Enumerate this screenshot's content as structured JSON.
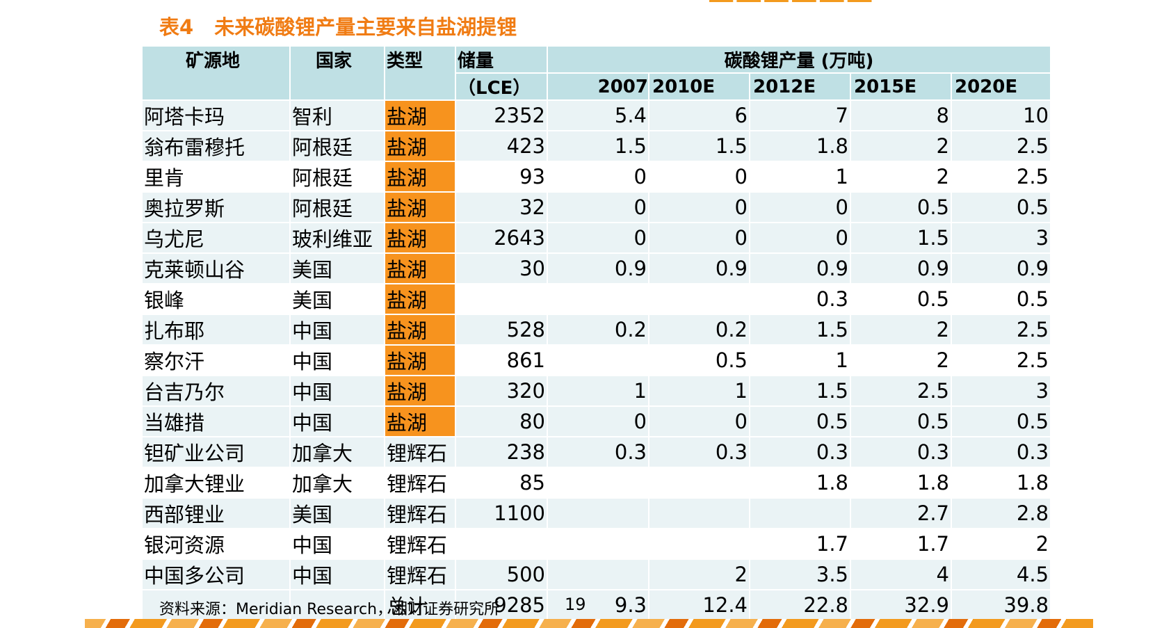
{
  "title": {
    "prefix": "表4",
    "text": "未来碳酸锂产量主要来自盐湖提锂"
  },
  "header": {
    "mine": "矿源地",
    "country": "国家",
    "type": "类型",
    "reserve_line1": "储量",
    "reserve_line2": "（LCE）",
    "production_group": "碳酸锂产量 (万吨)",
    "years": [
      "2007",
      "2010E",
      "2012E",
      "2015E",
      "2020E"
    ]
  },
  "rows": [
    {
      "mine": "阿塔卡玛",
      "country": "智利",
      "type": "盐湖",
      "reserve": "2352",
      "v": [
        "5.4",
        "6",
        "7",
        "8",
        "10"
      ]
    },
    {
      "mine": "翁布雷穆托",
      "country": "阿根廷",
      "type": "盐湖",
      "reserve": "423",
      "v": [
        "1.5",
        "1.5",
        "1.8",
        "2",
        "2.5"
      ]
    },
    {
      "mine": "里肯",
      "country": "阿根廷",
      "type": "盐湖",
      "reserve": "93",
      "v": [
        "0",
        "0",
        "1",
        "2",
        "2.5"
      ]
    },
    {
      "mine": "奥拉罗斯",
      "country": "阿根廷",
      "type": "盐湖",
      "reserve": "32",
      "v": [
        "0",
        "0",
        "0",
        "0.5",
        "0.5"
      ]
    },
    {
      "mine": "乌尤尼",
      "country": "玻利维亚",
      "type": "盐湖",
      "reserve": "2643",
      "v": [
        "0",
        "0",
        "0",
        "1.5",
        "3"
      ]
    },
    {
      "mine": "克莱顿山谷",
      "country": "美国",
      "type": "盐湖",
      "reserve": "30",
      "v": [
        "0.9",
        "0.9",
        "0.9",
        "0.9",
        "0.9"
      ]
    },
    {
      "mine": "银峰",
      "country": "美国",
      "type": "盐湖",
      "reserve": "",
      "v": [
        "",
        "",
        "0.3",
        "0.5",
        "0.5"
      ]
    },
    {
      "mine": "扎布耶",
      "country": "中国",
      "type": "盐湖",
      "reserve": "528",
      "v": [
        "0.2",
        "0.2",
        "1.5",
        "2",
        "2.5"
      ]
    },
    {
      "mine": "察尔汗",
      "country": "中国",
      "type": "盐湖",
      "reserve": "861",
      "v": [
        "",
        "0.5",
        "1",
        "2",
        "2.5"
      ]
    },
    {
      "mine": "台吉乃尔",
      "country": "中国",
      "type": "盐湖",
      "reserve": "320",
      "v": [
        "1",
        "1",
        "1.5",
        "2.5",
        "3"
      ]
    },
    {
      "mine": "当雄措",
      "country": "中国",
      "type": "盐湖",
      "reserve": "80",
      "v": [
        "0",
        "0",
        "0.5",
        "0.5",
        "0.5"
      ]
    },
    {
      "mine": "钽矿业公司",
      "country": "加拿大",
      "type": "锂辉石",
      "reserve": "238",
      "v": [
        "0.3",
        "0.3",
        "0.3",
        "0.3",
        "0.3"
      ]
    },
    {
      "mine": "加拿大锂业",
      "country": "加拿大",
      "type": "锂辉石",
      "reserve": "85",
      "v": [
        "",
        "",
        "1.8",
        "1.8",
        "1.8"
      ]
    },
    {
      "mine": "西部锂业",
      "country": "美国",
      "type": "锂辉石",
      "reserve": "1100",
      "v": [
        "",
        "",
        "",
        "2.7",
        "2.8"
      ]
    },
    {
      "mine": "银河资源",
      "country": "中国",
      "type": "锂辉石",
      "reserve": "",
      "v": [
        "",
        "",
        "1.7",
        "1.7",
        "2"
      ]
    },
    {
      "mine": "中国多公司",
      "country": "中国",
      "type": "锂辉石",
      "reserve": "500",
      "v": [
        "",
        "2",
        "3.5",
        "4",
        "4.5"
      ]
    },
    {
      "mine": "",
      "country": "",
      "type": "总计",
      "reserve": "9285",
      "v": [
        "9.3",
        "12.4",
        "22.8",
        "32.9",
        "39.8"
      ]
    }
  ],
  "footnote": {
    "label": "资料来源：",
    "source": "Meridian  Research",
    "org": "，湘财证券研究所"
  },
  "page_number": "19",
  "colors": {
    "title": "#f07c14",
    "type_highlight": "#f7931e",
    "header_bg": "#bfe0e4",
    "row_alt_bg": "#eaf3f5"
  }
}
